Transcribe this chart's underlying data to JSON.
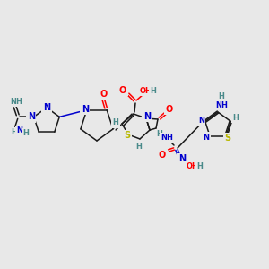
{
  "bg_color": "#e8e8e8",
  "atom_colors": {
    "C": "#1a1a1a",
    "N": "#0000cd",
    "O": "#ff0000",
    "S": "#b8b800",
    "H": "#4a8a8a"
  },
  "figsize": [
    3.0,
    3.0
  ],
  "dpi": 100,
  "xlim": [
    0,
    300
  ],
  "ylim": [
    0,
    300
  ]
}
